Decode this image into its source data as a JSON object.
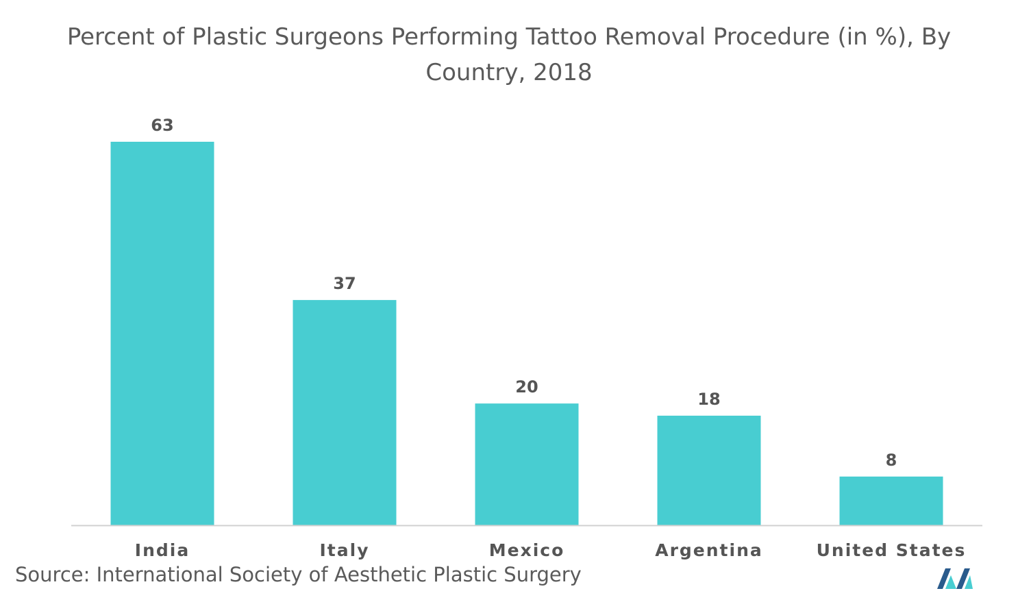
{
  "title_lines": [
    "Percent of Plastic Surgeons Performing Tattoo Removal Procedure (in %), By",
    "Country, 2018"
  ],
  "source": "Source: International Society of Aesthetic Plastic Surgery",
  "colors": {
    "bar": "#48cdd1",
    "text": "#555555",
    "axis": "#d0d0d0",
    "logo_dark": "#2a5b8c",
    "logo_light": "#48cdd1"
  },
  "logo": {
    "icon": "mordor-intelligence-logo-icon"
  },
  "chart_data": {
    "type": "bar",
    "title": "Percent of Plastic Surgeons Performing Tattoo Removal Procedure (in %), By Country, 2018",
    "categories": [
      "India",
      "Italy",
      "Mexico",
      "Argentina",
      "United States"
    ],
    "values": [
      63,
      37,
      20,
      18,
      8
    ],
    "xlabel": "",
    "ylabel": "",
    "ylim": [
      0,
      63
    ],
    "grid": false,
    "legend": "none"
  }
}
